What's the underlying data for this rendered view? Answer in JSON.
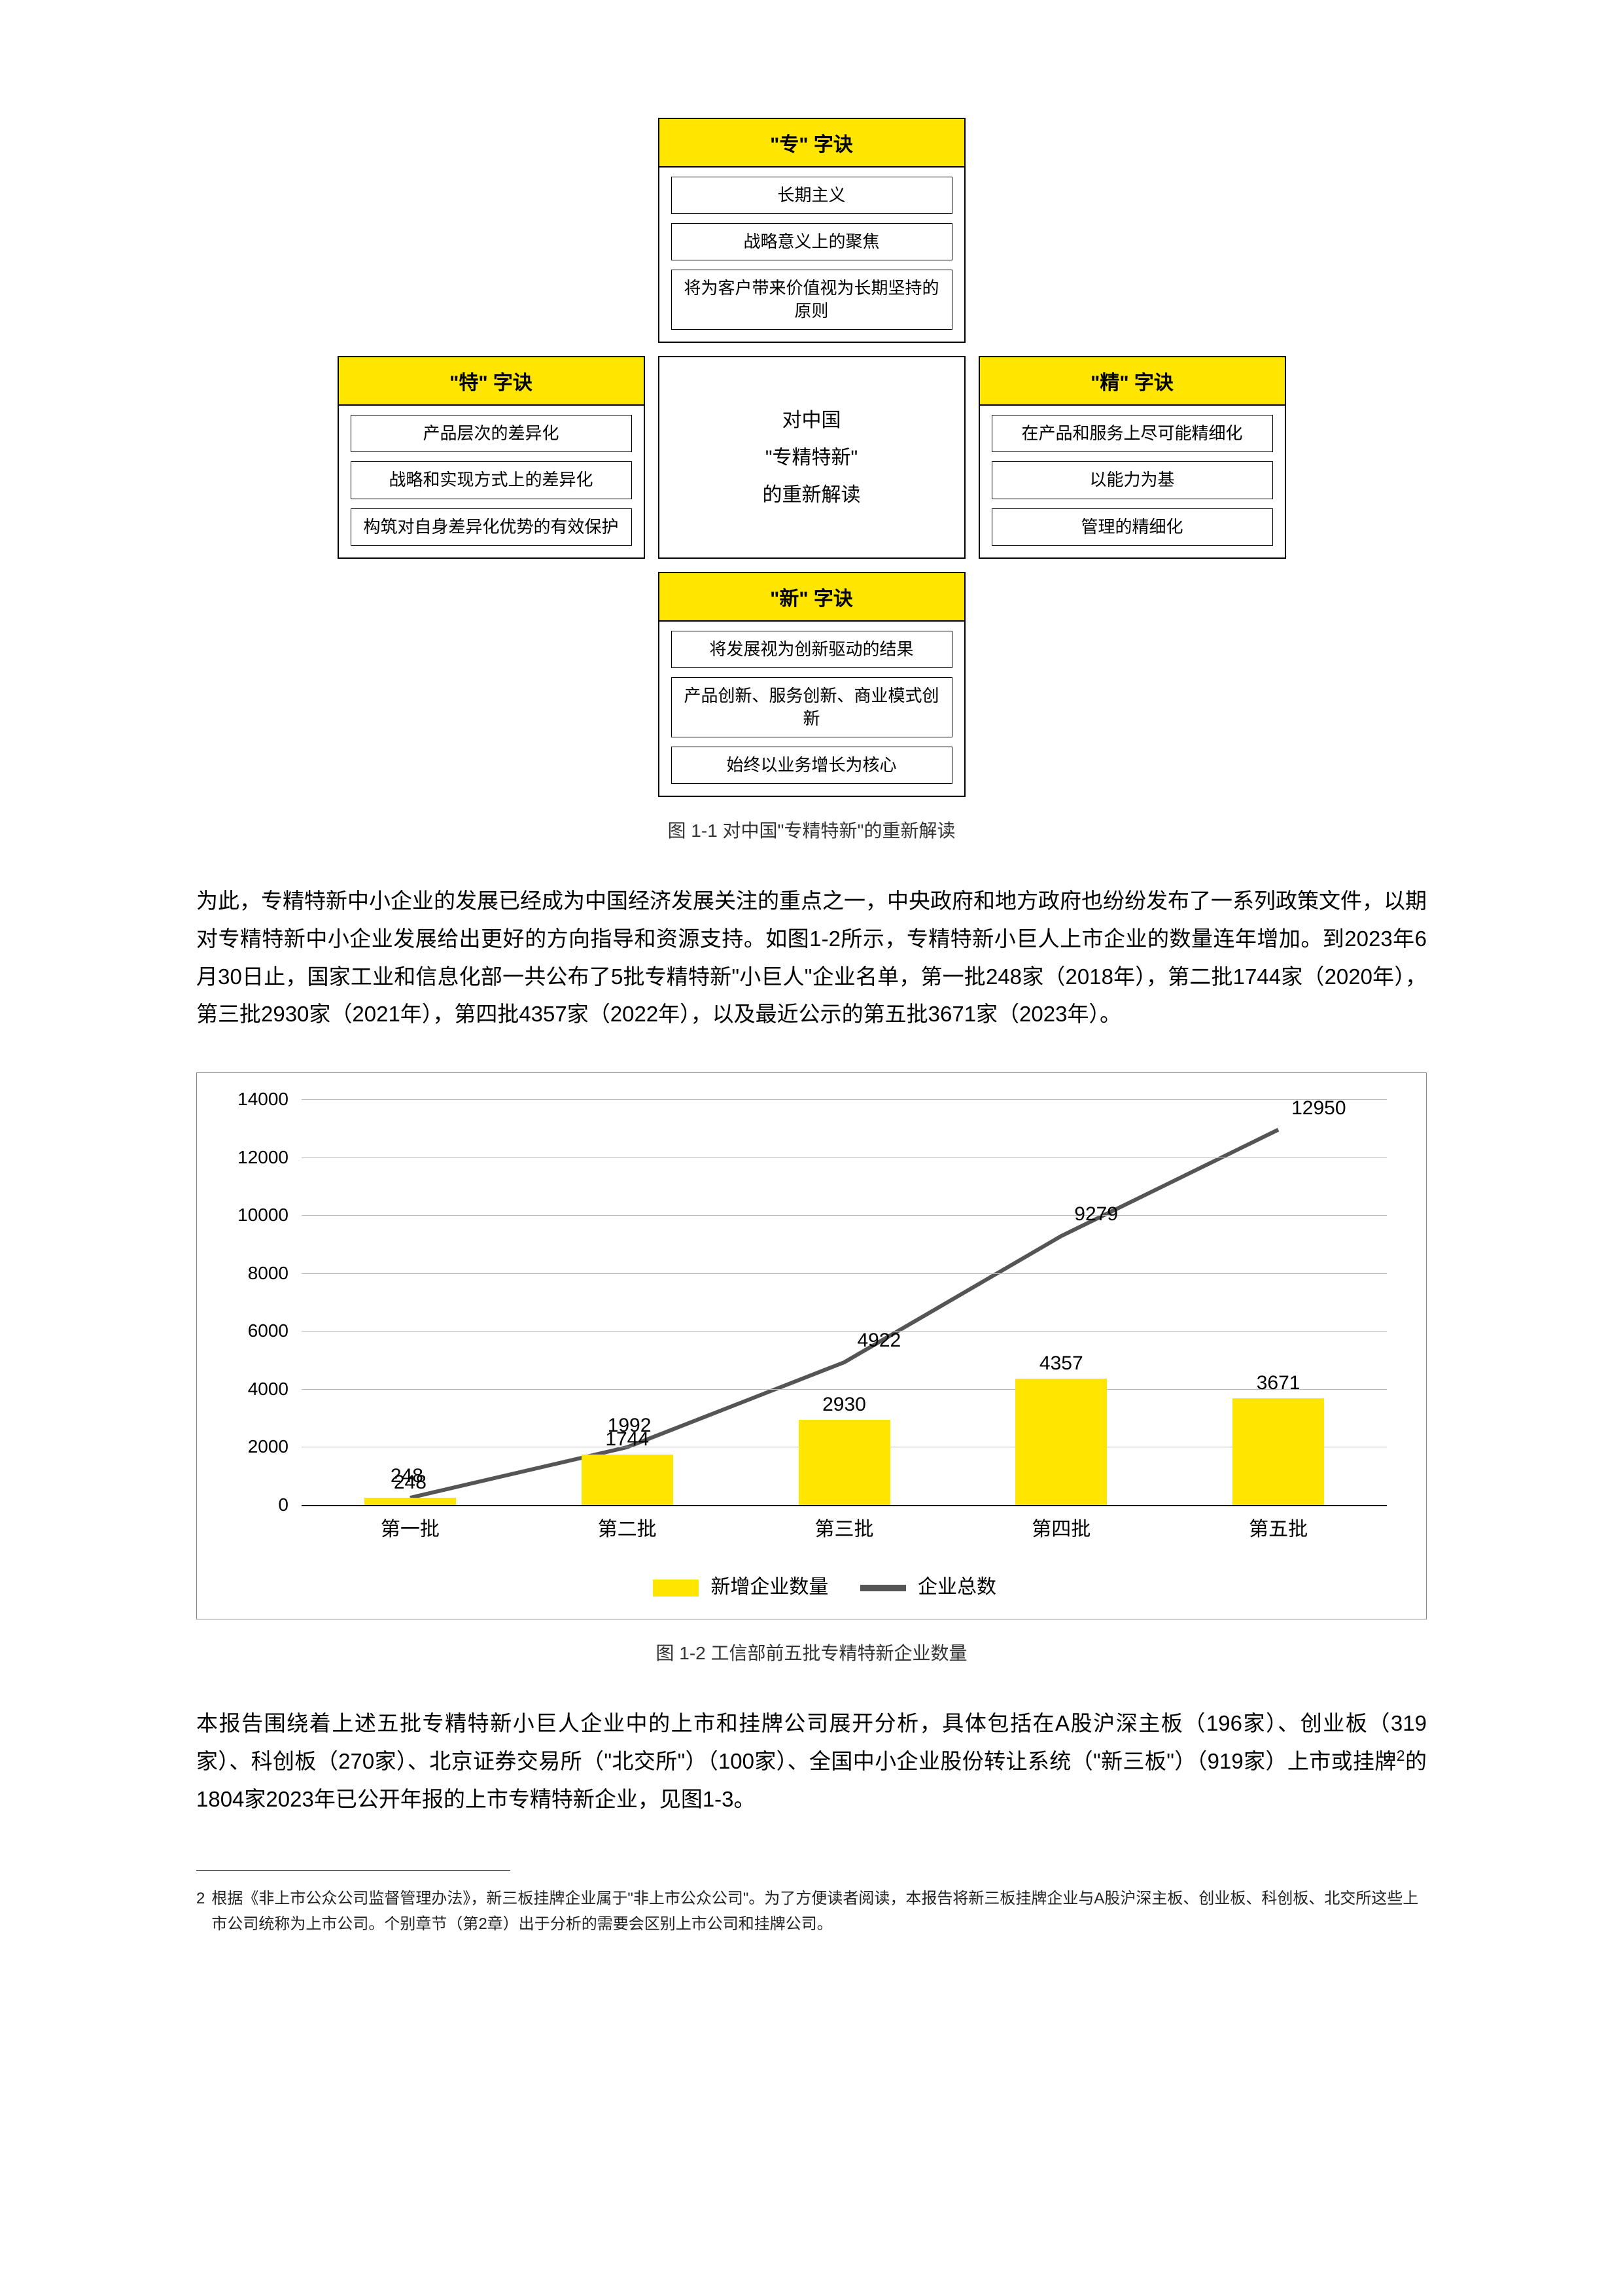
{
  "diagram": {
    "caption": "图 1-1 对中国\"专精特新\"的重新解读",
    "header_bg": "#ffe600",
    "border_color": "#000000",
    "center": {
      "line1": "对中国",
      "line2": "\"专精特新\"",
      "line3": "的重新解读"
    },
    "top": {
      "title": "\"专\" 字诀",
      "items": [
        "长期主义",
        "战略意义上的聚焦",
        "将为客户带来价值视为长期坚持的原则"
      ]
    },
    "left": {
      "title": "\"特\" 字诀",
      "items": [
        "产品层次的差异化",
        "战略和实现方式上的差异化",
        "构筑对自身差异化优势的有效保护"
      ]
    },
    "right": {
      "title": "\"精\" 字诀",
      "items": [
        "在产品和服务上尽可能精细化",
        "以能力为基",
        "管理的精细化"
      ]
    },
    "bottom": {
      "title": "\"新\" 字诀",
      "items": [
        "将发展视为创新驱动的结果",
        "产品创新、服务创新、商业模式创新",
        "始终以业务增长为核心"
      ]
    }
  },
  "body_para_1": "为此，专精特新中小企业的发展已经成为中国经济发展关注的重点之一，中央政府和地方政府也纷纷发布了一系列政策文件，以期对专精特新中小企业发展给出更好的方向指导和资源支持。如图1-2所示，专精特新小巨人上市企业的数量连年增加。到2023年6月30日止，国家工业和信息化部一共公布了5批专精特新\"小巨人\"企业名单，第一批248家（2018年），第二批1744家（2020年），第三批2930家（2021年），第四批4357家（2022年），以及最近公示的第五批3671家（2023年）。",
  "chart": {
    "caption": "图 1-2 工信部前五批专精特新企业数量",
    "type": "bar+line",
    "categories": [
      "第一批",
      "第二批",
      "第三批",
      "第四批",
      "第五批"
    ],
    "bar_values": [
      248,
      1744,
      2930,
      4357,
      3671
    ],
    "line_values": [
      248,
      1992,
      4922,
      9279,
      12950
    ],
    "bar_labels": [
      "248",
      "1744",
      "2930",
      "4357",
      "3671"
    ],
    "line_labels": [
      "248",
      "1992",
      "4922",
      "9279",
      "12950"
    ],
    "ylim": [
      0,
      14000
    ],
    "ytick_step": 2000,
    "bar_color": "#ffe600",
    "line_color": "#555555",
    "grid_color": "#bbbbbb",
    "axis_color": "#000000",
    "legend": {
      "bar": "新增企业数量",
      "line": "企业总数"
    },
    "label_fontsize": 30
  },
  "body_para_2_pre": "本报告围绕着上述五批专精特新小巨人企业中的上市和挂牌公司展开分析，具体包括在A股沪深主板（196家）、创业板（319家）、科创板（270家）、北京证券交易所（\"北交所\"）（100家）、全国中小企业股份转让系统（\"新三板\"）（919家）上市或挂牌",
  "body_para_2_supref": "2",
  "body_para_2_post": "的1804家2023年已公开年报的上市专精特新企业，见图1-3。",
  "footnote": {
    "num": "2",
    "text": "根据《非上市公众公司监督管理办法》，新三板挂牌企业属于\"非上市公众公司\"。为了方便读者阅读，本报告将新三板挂牌企业与A股沪深主板、创业板、科创板、北交所这些上市公司统称为上市公司。个别章节（第2章）出于分析的需要会区别上市公司和挂牌公司。"
  }
}
